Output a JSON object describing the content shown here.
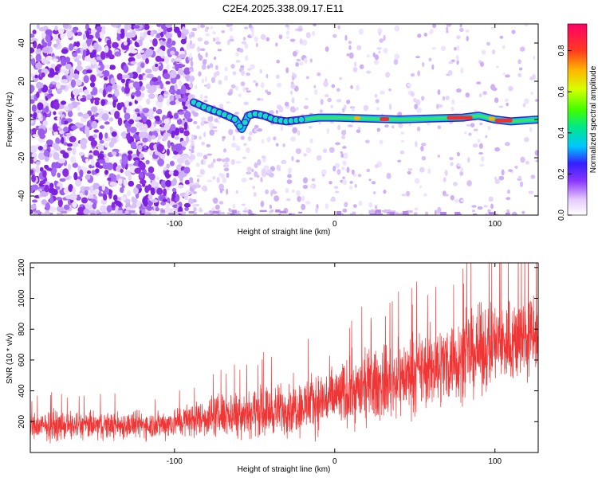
{
  "title": "C2E4.2025.338.09.17.E11",
  "chart_data": [
    {
      "type": "heatmap",
      "name": "spectrogram",
      "xlabel": "Height of straight line (km)",
      "ylabel": "Frequency (Hz)",
      "xlim": [
        -190,
        127
      ],
      "ylim": [
        -50,
        50
      ],
      "xticks": [
        {
          "value": -100,
          "label": "-100"
        },
        {
          "value": 0,
          "label": "0"
        },
        {
          "value": 100,
          "label": "100"
        }
      ],
      "yticks": [
        {
          "value": -40,
          "label": "-40"
        },
        {
          "value": -20,
          "label": "-20"
        },
        {
          "value": 0,
          "label": "0"
        },
        {
          "value": 20,
          "label": "20"
        },
        {
          "value": 40,
          "label": "40"
        }
      ],
      "colorbar": {
        "label": "Normalized spectral amplitude",
        "range": [
          0,
          0.93
        ],
        "ticks": [
          {
            "value": 0.0,
            "label": "0.0"
          },
          {
            "value": 0.2,
            "label": "0.2"
          },
          {
            "value": 0.4,
            "label": "0.4"
          },
          {
            "value": 0.6,
            "label": "0.6"
          },
          {
            "value": 0.8,
            "label": "0.8"
          }
        ]
      },
      "ridge": {
        "x": [
          -88,
          -80,
          -70,
          -62,
          -58,
          -54,
          -50,
          -44,
          -38,
          -30,
          -20,
          -10,
          0,
          20,
          40,
          60,
          80,
          90,
          95,
          100,
          110,
          127
        ],
        "y": [
          9,
          6,
          3,
          0,
          -5,
          2,
          3,
          2,
          0,
          -1,
          0,
          1,
          1,
          0.5,
          0,
          0.5,
          1,
          2,
          1,
          0,
          -1,
          0
        ]
      }
    },
    {
      "type": "line",
      "name": "snr",
      "xlabel": "Height of straight line (km)",
      "ylabel": "SNR (10 * v/v)",
      "xlim": [
        -190,
        127
      ],
      "ylim": [
        0,
        1230
      ],
      "xticks": [
        {
          "value": -100,
          "label": "-100"
        },
        {
          "value": 0,
          "label": "0"
        },
        {
          "value": 100,
          "label": "100"
        }
      ],
      "yticks": [
        {
          "value": 200,
          "label": "200"
        },
        {
          "value": 400,
          "label": "400"
        },
        {
          "value": 600,
          "label": "600"
        },
        {
          "value": 800,
          "label": "800"
        },
        {
          "value": 1000,
          "label": "1000"
        },
        {
          "value": 1200,
          "label": "1200"
        }
      ],
      "series": [
        {
          "name": "SNR",
          "color": "#f03535",
          "envelope": {
            "x": [
              -190,
              -150,
              -110,
              -80,
              -60,
              -40,
              -20,
              0,
              20,
              40,
              60,
              80,
              100,
              127
            ],
            "mean": [
              170,
              175,
              180,
              230,
              260,
              270,
              300,
              360,
              420,
              480,
              550,
              620,
              700,
              760
            ],
            "amp": [
              130,
              130,
              130,
              180,
              230,
              230,
              260,
              300,
              330,
              350,
              370,
              390,
              400,
              420
            ]
          }
        }
      ]
    }
  ]
}
